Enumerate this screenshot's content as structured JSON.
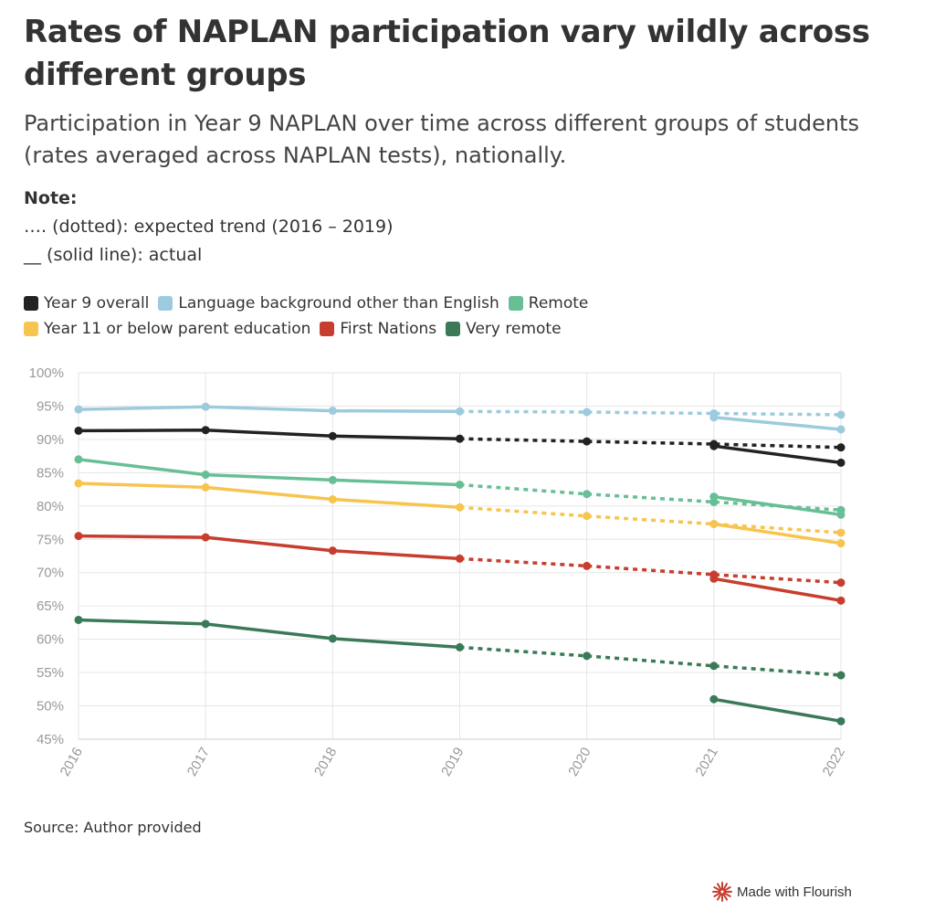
{
  "title": "Rates of NAPLAN participation vary wildly across different groups",
  "subtitle": "Participation in Year 9 NAPLAN over time across different groups of students (rates averaged across NAPLAN tests), nationally.",
  "note": {
    "heading": "Note:",
    "dotted": "…. (dotted): expected trend (2016 – 2019)",
    "solid": "__ (solid line): actual"
  },
  "legend": [
    {
      "label": "Year 9 overall",
      "color": "#222222"
    },
    {
      "label": "Language background other than English",
      "color": "#9ccbdd"
    },
    {
      "label": "Remote",
      "color": "#68bf95"
    },
    {
      "label": "Year 11 or below parent education",
      "color": "#f7c44f"
    },
    {
      "label": "First Nations",
      "color": "#c73d2e"
    },
    {
      "label": "Very remote",
      "color": "#3a7a57"
    }
  ],
  "chart_data": {
    "type": "line",
    "title": "Rates of NAPLAN participation vary wildly across different groups",
    "xlabel": "",
    "ylabel": "",
    "categories": [
      "2016",
      "2017",
      "2018",
      "2019",
      "2020",
      "2021",
      "2022"
    ],
    "ylim": [
      45,
      100
    ],
    "yticks": [
      "100%",
      "95%",
      "90%",
      "85%",
      "80%",
      "75%",
      "70%",
      "65%",
      "60%",
      "55%",
      "50%",
      "45%"
    ],
    "grid": true,
    "series": [
      {
        "name": "Year 9 overall",
        "color": "#222222",
        "actual": [
          [
            2016,
            91.3
          ],
          [
            2017,
            91.4
          ],
          [
            2018,
            90.5
          ],
          [
            2019,
            90.1
          ],
          [
            2021,
            89.0
          ],
          [
            2022,
            86.5
          ]
        ],
        "expected": [
          [
            2019,
            90.1
          ],
          [
            2020,
            89.7
          ],
          [
            2021,
            89.3
          ],
          [
            2022,
            88.8
          ]
        ]
      },
      {
        "name": "Language background other than English",
        "color": "#9ccbdd",
        "actual": [
          [
            2016,
            94.5
          ],
          [
            2017,
            94.9
          ],
          [
            2018,
            94.3
          ],
          [
            2019,
            94.2
          ],
          [
            2021,
            93.3
          ],
          [
            2022,
            91.5
          ]
        ],
        "expected": [
          [
            2019,
            94.2
          ],
          [
            2020,
            94.1
          ],
          [
            2021,
            93.9
          ],
          [
            2022,
            93.7
          ]
        ]
      },
      {
        "name": "Remote",
        "color": "#68bf95",
        "actual": [
          [
            2016,
            87.0
          ],
          [
            2017,
            84.7
          ],
          [
            2018,
            83.9
          ],
          [
            2019,
            83.2
          ],
          [
            2021,
            81.4
          ],
          [
            2022,
            78.7
          ]
        ],
        "expected": [
          [
            2019,
            83.2
          ],
          [
            2020,
            81.8
          ],
          [
            2021,
            80.6
          ],
          [
            2022,
            79.4
          ]
        ]
      },
      {
        "name": "Year 11 or below parent education",
        "color": "#f7c44f",
        "actual": [
          [
            2016,
            83.4
          ],
          [
            2017,
            82.8
          ],
          [
            2018,
            81.0
          ],
          [
            2019,
            79.8
          ],
          [
            2021,
            77.3
          ],
          [
            2022,
            74.4
          ]
        ],
        "expected": [
          [
            2019,
            79.8
          ],
          [
            2020,
            78.5
          ],
          [
            2021,
            77.3
          ],
          [
            2022,
            76.0
          ]
        ]
      },
      {
        "name": "First Nations",
        "color": "#c73d2e",
        "actual": [
          [
            2016,
            75.5
          ],
          [
            2017,
            75.3
          ],
          [
            2018,
            73.3
          ],
          [
            2019,
            72.1
          ],
          [
            2021,
            69.1
          ],
          [
            2022,
            65.8
          ]
        ],
        "expected": [
          [
            2019,
            72.1
          ],
          [
            2020,
            71.0
          ],
          [
            2021,
            69.7
          ],
          [
            2022,
            68.5
          ]
        ]
      },
      {
        "name": "Very remote",
        "color": "#3a7a57",
        "actual": [
          [
            2016,
            62.9
          ],
          [
            2017,
            62.3
          ],
          [
            2018,
            60.1
          ],
          [
            2019,
            58.8
          ],
          [
            2021,
            51.0
          ],
          [
            2022,
            47.7
          ]
        ],
        "expected": [
          [
            2019,
            58.8
          ],
          [
            2020,
            57.5
          ],
          [
            2021,
            56.0
          ],
          [
            2022,
            54.6
          ]
        ]
      }
    ]
  },
  "source": "Source: Author provided",
  "footer": {
    "made_with": "Made with Flourish",
    "icon": "flourish-burst-icon",
    "icon_color": "#c73d2e"
  }
}
